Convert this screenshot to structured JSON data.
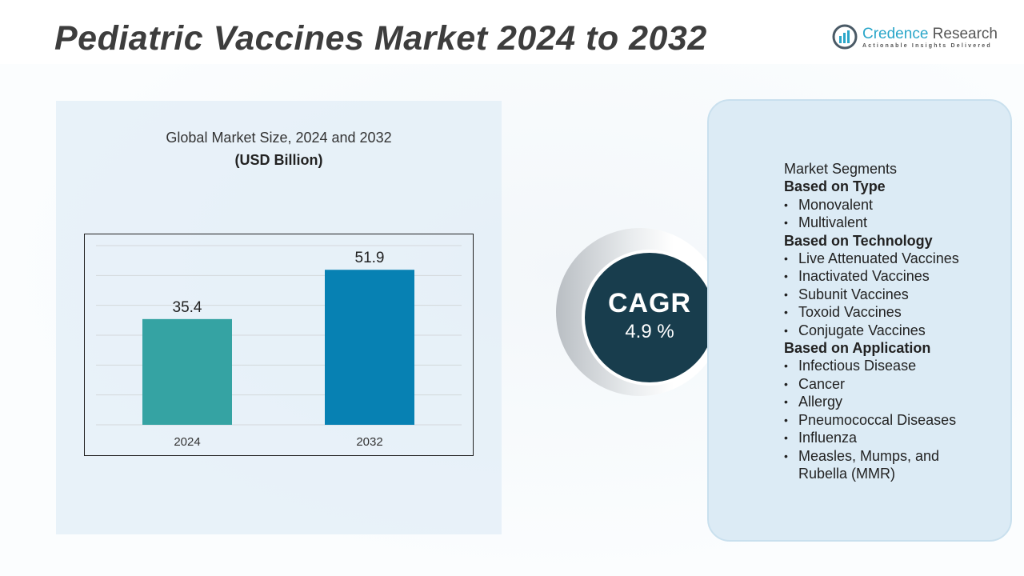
{
  "title": "Pediatric Vaccines Market 2024 to 2032",
  "logo": {
    "name_part1": "Credence",
    "name_part2": " Research",
    "tagline": "Actionable Insights Delivered"
  },
  "chart_data": {
    "type": "bar",
    "title": "Global Market Size, 2024 and 2032",
    "unit_label": "(USD Billion)",
    "categories": [
      "2024",
      "2032"
    ],
    "values": [
      35.4,
      51.9
    ],
    "data_labels": [
      "35.4",
      "51.9"
    ],
    "bar_colors": [
      "#35a3a3",
      "#0781b3"
    ],
    "ylim": [
      0,
      60
    ],
    "grid": true,
    "xlabel": "",
    "ylabel": ""
  },
  "cagr": {
    "label": "CAGR",
    "value": "4.9 %"
  },
  "segments": {
    "heading": "Market Segments",
    "groups": [
      {
        "title": "Based on Type",
        "items": [
          "Monovalent",
          "Multivalent"
        ]
      },
      {
        "title": "Based on Technology",
        "items": [
          "Live Attenuated Vaccines",
          "Inactivated Vaccines",
          "Subunit Vaccines",
          "Toxoid Vaccines",
          "Conjugate Vaccines"
        ]
      },
      {
        "title": "Based on Application",
        "items": [
          "Infectious Disease",
          "Cancer",
          "Allergy",
          "Pneumococcal Diseases",
          "Influenza",
          "Measles, Mumps, and Rubella (MMR)"
        ]
      }
    ]
  },
  "colors": {
    "title": "#3d3d3d",
    "cagr_bg": "#183d4d",
    "panel_bg": "#dcebf5",
    "brand": "#2aa6c9"
  }
}
